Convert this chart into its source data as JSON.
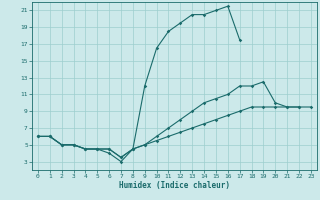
{
  "xlabel": "Humidex (Indice chaleur)",
  "bg_color": "#cce9ea",
  "line_color": "#1a6b6b",
  "grid_color": "#9ecece",
  "xlim": [
    -0.5,
    23.5
  ],
  "ylim": [
    2.0,
    22.0
  ],
  "xticks": [
    0,
    1,
    2,
    3,
    4,
    5,
    6,
    7,
    8,
    9,
    10,
    11,
    12,
    13,
    14,
    15,
    16,
    17,
    18,
    19,
    20,
    21,
    22,
    23
  ],
  "yticks": [
    3,
    5,
    7,
    9,
    11,
    13,
    15,
    17,
    19,
    21
  ],
  "line1_x": [
    0,
    1,
    2,
    3,
    4,
    5,
    6,
    7,
    8,
    9,
    10,
    11,
    12,
    13,
    14,
    15,
    16,
    17
  ],
  "line1_y": [
    6,
    6,
    5,
    5,
    4.5,
    4.5,
    4.0,
    3.0,
    4.5,
    12,
    16.5,
    18.5,
    19.5,
    20.5,
    20.5,
    21,
    21.5,
    17.5
  ],
  "line2_x": [
    0,
    1,
    2,
    3,
    4,
    5,
    6,
    7,
    8,
    9,
    10,
    11,
    12,
    13,
    14,
    15,
    16,
    17,
    18,
    19,
    20,
    21,
    22
  ],
  "line2_y": [
    6,
    6,
    5,
    5,
    4.5,
    4.5,
    4.5,
    3.5,
    4.5,
    5,
    6,
    7,
    8,
    9,
    10,
    10.5,
    11,
    12,
    12,
    12.5,
    10,
    9.5,
    9.5
  ],
  "line3_x": [
    0,
    1,
    2,
    3,
    4,
    5,
    6,
    7,
    8,
    9,
    10,
    11,
    12,
    13,
    14,
    15,
    16,
    17,
    18,
    19,
    20,
    21,
    22,
    23
  ],
  "line3_y": [
    6,
    6,
    5,
    5,
    4.5,
    4.5,
    4.5,
    3.5,
    4.5,
    5,
    5.5,
    6,
    6.5,
    7,
    7.5,
    8,
    8.5,
    9,
    9.5,
    9.5,
    9.5,
    9.5,
    9.5,
    9.5
  ]
}
